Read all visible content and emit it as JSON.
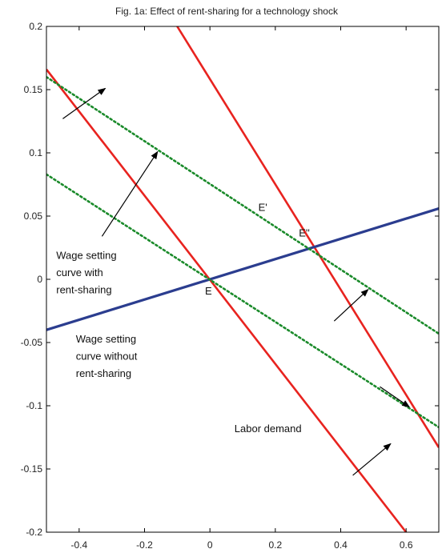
{
  "chart_data": {
    "type": "line",
    "title": "Fig. 1a: Effect of rent-sharing for a technology shock",
    "xlabel": "",
    "ylabel": "",
    "xlim": [
      -0.5,
      0.7
    ],
    "ylim": [
      -0.2,
      0.2
    ],
    "x_ticks": [
      -0.4,
      -0.2,
      0,
      0.2,
      0.4,
      0.6
    ],
    "x_tick_labels": [
      "-0.4",
      "-0.2",
      "0",
      "0.2",
      "0.4",
      "0.6"
    ],
    "y_ticks": [
      0.2,
      0.15,
      0.1,
      0.05,
      0,
      -0.05,
      -0.1,
      -0.15,
      -0.2
    ],
    "y_tick_labels": [
      "0.2",
      "0.15",
      "0.1",
      "0.05",
      "0",
      "-0.05",
      "-0.1",
      "-0.15",
      "-0.2"
    ],
    "grid": false,
    "colors": {
      "labor": "#e8231f",
      "wage": "#2b3d8f",
      "rent": "#1a8a2a",
      "axis": "#000000"
    },
    "series": [
      {
        "key": "labor1",
        "style": "labor",
        "points": [
          [
            -0.5,
            0.166
          ],
          [
            0.6,
            -0.2
          ]
        ]
      },
      {
        "key": "labor2",
        "style": "labor",
        "points": [
          [
            -0.1,
            0.2
          ],
          [
            0.7,
            -0.133
          ]
        ]
      },
      {
        "key": "wage_no_rent",
        "style": "wage",
        "points": [
          [
            -0.5,
            -0.04
          ],
          [
            0.7,
            0.056
          ]
        ]
      },
      {
        "key": "rent1",
        "style": "rent",
        "points": [
          [
            -0.5,
            0.083
          ],
          [
            0.7,
            -0.117
          ]
        ]
      },
      {
        "key": "rent2",
        "style": "rent",
        "points": [
          [
            -0.5,
            0.16
          ],
          [
            0.7,
            -0.043
          ]
        ]
      }
    ],
    "annotations": [
      {
        "key": "E",
        "text": "E",
        "x": -0.015,
        "y": -0.012
      },
      {
        "key": "E1",
        "text": "E'",
        "x": 0.148,
        "y": 0.054
      },
      {
        "key": "E2",
        "text": "E''",
        "x": 0.272,
        "y": 0.034
      },
      {
        "key": "labor_demand",
        "text": "Labor demand",
        "x": 0.075,
        "y": -0.121
      }
    ],
    "multiline_annotations": [
      {
        "key": "wage_rent",
        "lines": [
          "Wage setting",
          "curve with",
          "rent-sharing"
        ],
        "x": -0.47,
        "y": 0.016,
        "dy": 0.0136
      },
      {
        "key": "wage_no_rent",
        "lines": [
          "Wage setting",
          "curve without",
          "rent-sharing"
        ],
        "x": -0.41,
        "y": -0.05,
        "dy": 0.0136
      }
    ],
    "arrows": [
      {
        "from": [
          -0.45,
          0.127
        ],
        "to": [
          -0.32,
          0.151
        ]
      },
      {
        "from": [
          -0.33,
          0.034
        ],
        "to": [
          -0.16,
          0.101
        ]
      },
      {
        "from": [
          0.38,
          -0.033
        ],
        "to": [
          0.484,
          -0.008
        ]
      },
      {
        "from": [
          0.437,
          -0.155
        ],
        "to": [
          0.553,
          -0.13
        ]
      },
      {
        "from": [
          0.52,
          -0.085
        ],
        "to": [
          0.61,
          -0.101
        ]
      }
    ]
  }
}
